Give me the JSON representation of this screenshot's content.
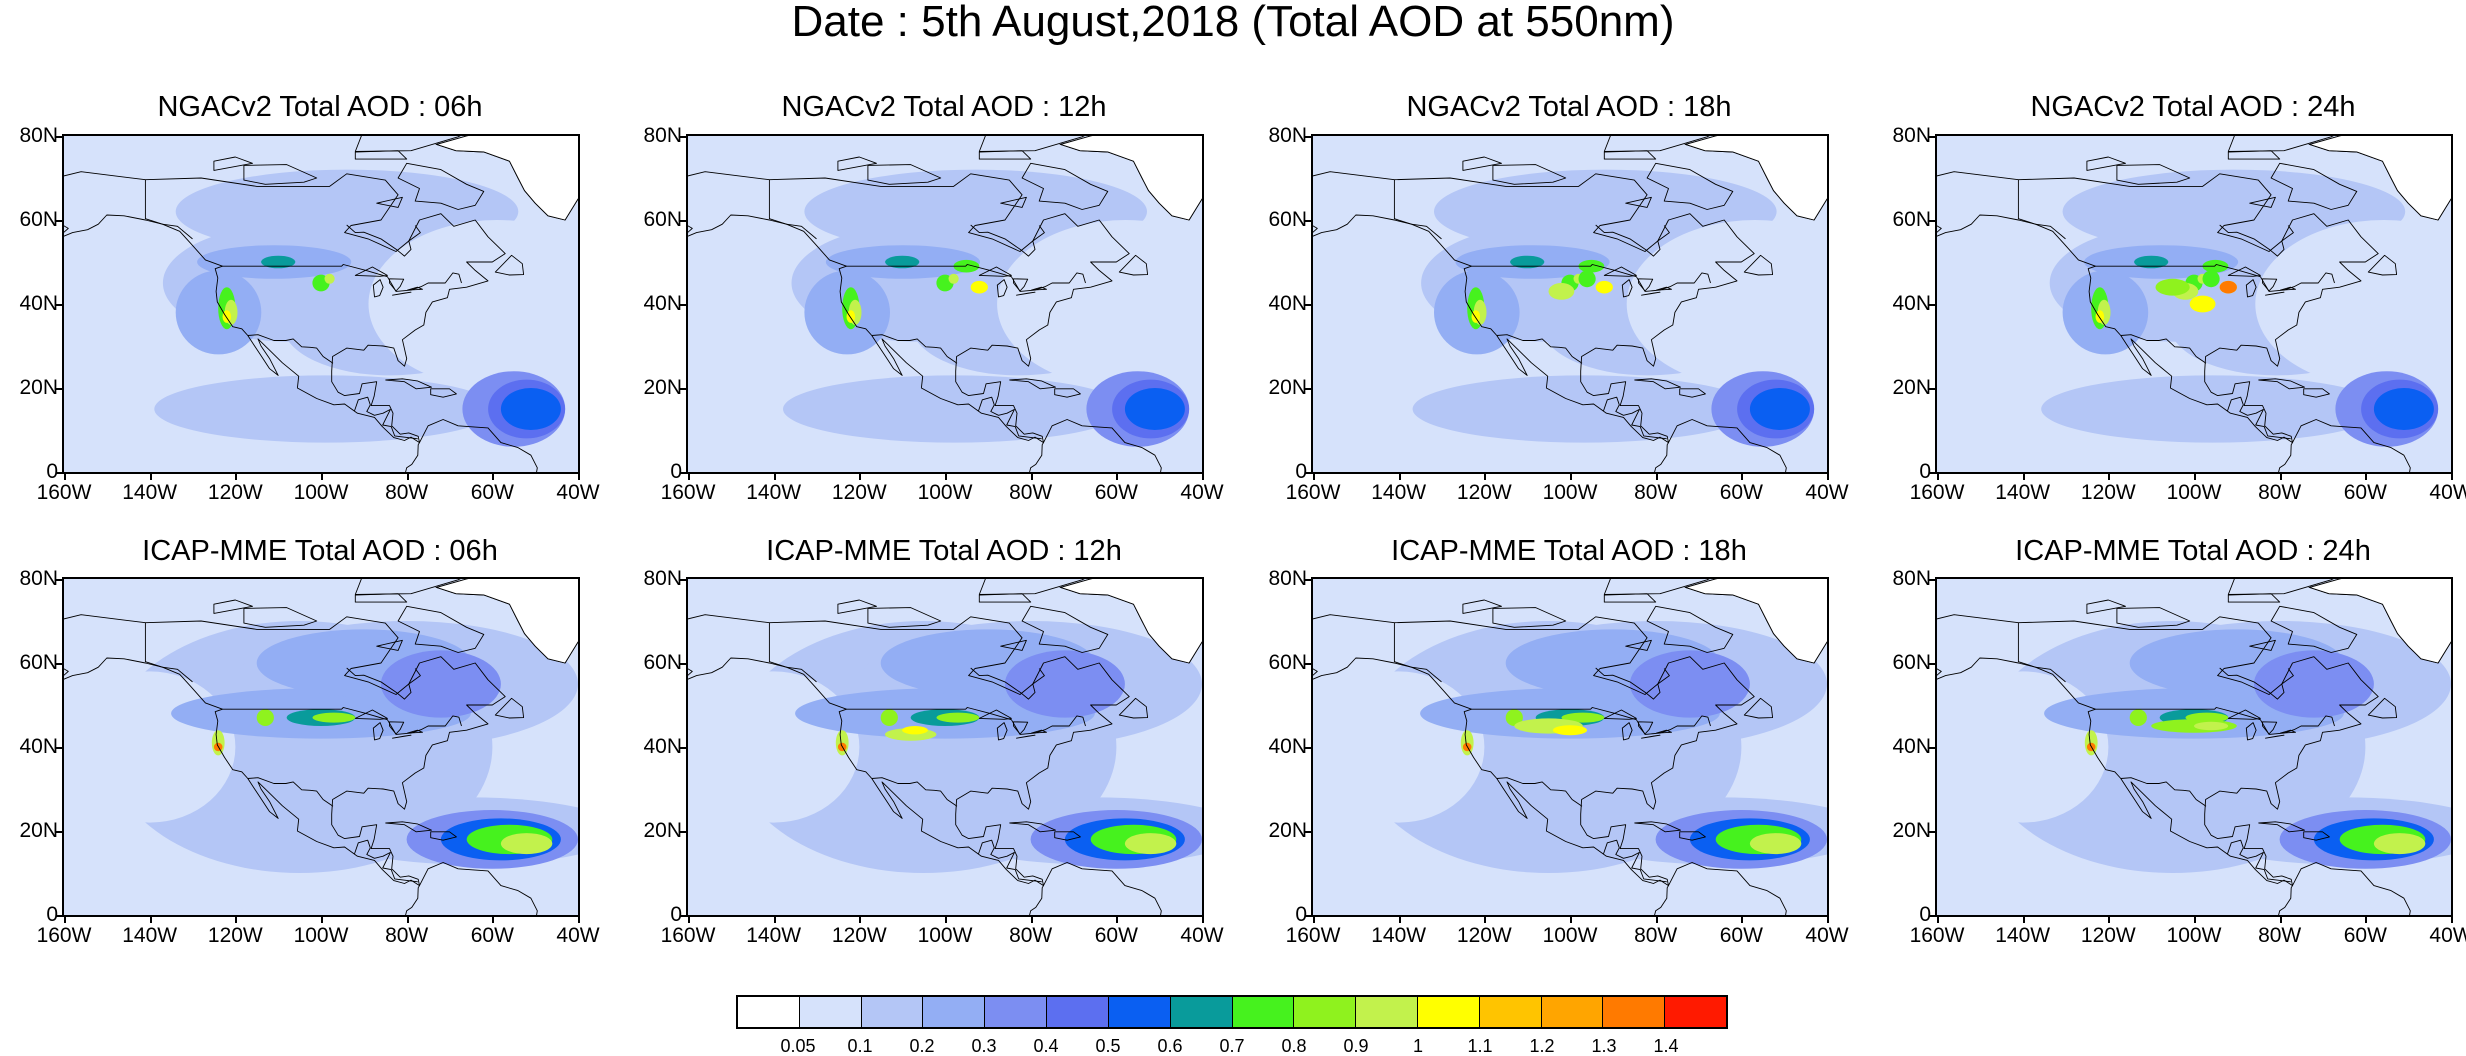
{
  "title": "Date : 5th August,2018 (Total AOD at 550nm)",
  "lat_labels": [
    "80N",
    "60N",
    "40N",
    "20N",
    "0"
  ],
  "lon_labels": [
    "160W",
    "140W",
    "120W",
    "100W",
    "80W",
    "60W",
    "40W"
  ],
  "panels": [
    {
      "title": "NGACv2 Total AOD : 06h",
      "model": "NGACv2",
      "hour": "06h"
    },
    {
      "title": "NGACv2 Total AOD : 12h",
      "model": "NGACv2",
      "hour": "12h"
    },
    {
      "title": "NGACv2 Total AOD : 18h",
      "model": "NGACv2",
      "hour": "18h"
    },
    {
      "title": "NGACv2 Total AOD : 24h",
      "model": "NGACv2",
      "hour": "24h"
    },
    {
      "title": "ICAP-MME Total AOD : 06h",
      "model": "ICAP-MME",
      "hour": "06h"
    },
    {
      "title": "ICAP-MME Total AOD : 12h",
      "model": "ICAP-MME",
      "hour": "12h"
    },
    {
      "title": "ICAP-MME Total AOD : 18h",
      "model": "ICAP-MME",
      "hour": "18h"
    },
    {
      "title": "ICAP-MME Total AOD : 24h",
      "model": "ICAP-MME",
      "hour": "24h"
    }
  ],
  "colorbar": {
    "colors": [
      "#ffffff",
      "#d6e2fb",
      "#b4c6f6",
      "#93aef4",
      "#7c8ef2",
      "#5c6ff0",
      "#0a5ff2",
      "#099b9b",
      "#46f21e",
      "#8ff21e",
      "#c2f24c",
      "#ffff00",
      "#ffc400",
      "#ffa500",
      "#ff7a00",
      "#ff1a00"
    ],
    "labels": [
      "0.05",
      "0.1",
      "0.2",
      "0.3",
      "0.4",
      "0.5",
      "0.6",
      "0.7",
      "0.8",
      "0.9",
      "1",
      "1.1",
      "1.2",
      "1.3",
      "1.4"
    ]
  }
}
